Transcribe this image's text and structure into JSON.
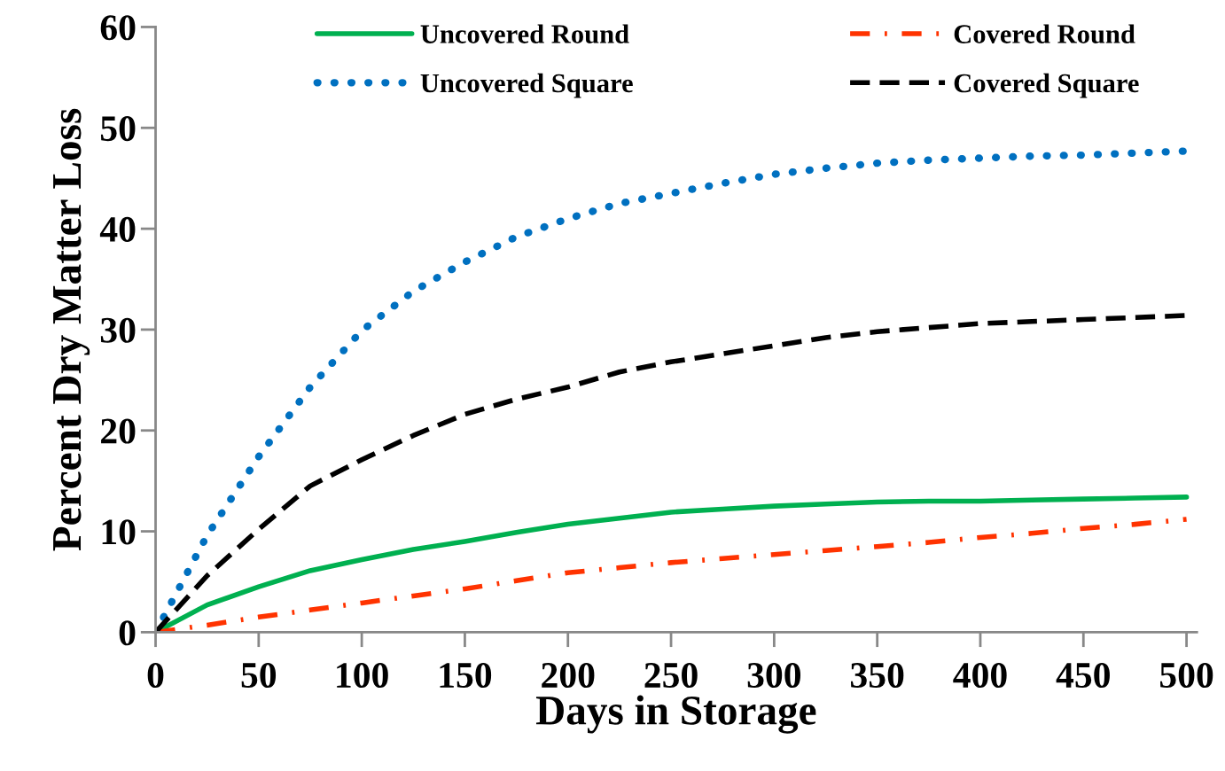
{
  "chart_data": {
    "type": "line",
    "xlabel": "Days in Storage",
    "ylabel": "Percent Dry Matter Loss",
    "x": [
      0,
      25,
      50,
      75,
      100,
      125,
      150,
      175,
      200,
      225,
      250,
      275,
      300,
      325,
      350,
      375,
      400,
      425,
      450,
      475,
      500
    ],
    "xlim": [
      0,
      505
    ],
    "ylim": [
      0,
      60
    ],
    "yticks": [
      0,
      10,
      20,
      30,
      40,
      50,
      60
    ],
    "xticks": [
      0,
      50,
      100,
      150,
      200,
      250,
      300,
      350,
      400,
      450,
      500
    ],
    "grid": false,
    "legend": "top",
    "marker": "none",
    "series": [
      {
        "name": "Uncovered Round",
        "color": "#00b050",
        "line_style": "solid",
        "values": [
          0,
          2.7,
          4.5,
          6.1,
          7.2,
          8.2,
          9.0,
          9.9,
          10.7,
          11.3,
          11.9,
          12.2,
          12.5,
          12.7,
          12.9,
          13.0,
          13.0,
          13.1,
          13.2,
          13.3,
          13.4
        ]
      },
      {
        "name": "Uncovered Square",
        "color": "#0070c0",
        "line_style": "dotted",
        "values": [
          0,
          9.6,
          17.4,
          24.3,
          29.9,
          33.8,
          36.7,
          39.2,
          41.0,
          42.5,
          43.5,
          44.5,
          45.4,
          46.0,
          46.5,
          46.8,
          47.0,
          47.2,
          47.3,
          47.5,
          47.7
        ]
      },
      {
        "name": "Covered Round",
        "color": "#ff3300",
        "line_style": "dashdot",
        "values": [
          0,
          0.7,
          1.5,
          2.2,
          2.9,
          3.6,
          4.3,
          5.1,
          5.9,
          6.4,
          6.9,
          7.3,
          7.7,
          8.1,
          8.5,
          8.9,
          9.4,
          9.8,
          10.3,
          10.7,
          11.2
        ]
      },
      {
        "name": "Covered Square",
        "color": "#000000",
        "line_style": "dashed",
        "values": [
          0,
          5.6,
          10.2,
          14.5,
          17.1,
          19.5,
          21.6,
          23.1,
          24.3,
          25.8,
          26.8,
          27.6,
          28.4,
          29.2,
          29.8,
          30.2,
          30.6,
          30.8,
          31.0,
          31.2,
          31.4
        ]
      }
    ]
  }
}
